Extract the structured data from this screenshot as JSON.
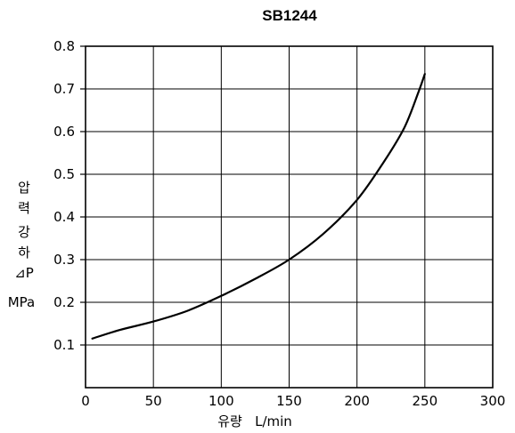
{
  "chart_data": {
    "type": "line",
    "title": "SB1244",
    "xlabel": "유량   L/min",
    "ylabel_lines": [
      "압",
      "력",
      "강",
      "하",
      "⊿P",
      "MPa"
    ],
    "xlim": [
      0,
      300
    ],
    "ylim": [
      0,
      0.8
    ],
    "x_ticks": [
      "0",
      "50",
      "100",
      "150",
      "200",
      "250",
      "300"
    ],
    "y_ticks": [
      "0.1",
      "0.2",
      "0.3",
      "0.4",
      "0.5",
      "0.6",
      "0.7",
      "0.8"
    ],
    "grid": true,
    "series": [
      {
        "x": [
          5,
          25,
          50,
          75,
          100,
          125,
          150,
          175,
          200,
          220,
          235,
          245,
          250
        ],
        "y": [
          0.115,
          0.135,
          0.155,
          0.18,
          0.215,
          0.255,
          0.3,
          0.36,
          0.44,
          0.53,
          0.61,
          0.69,
          0.735
        ]
      }
    ]
  }
}
